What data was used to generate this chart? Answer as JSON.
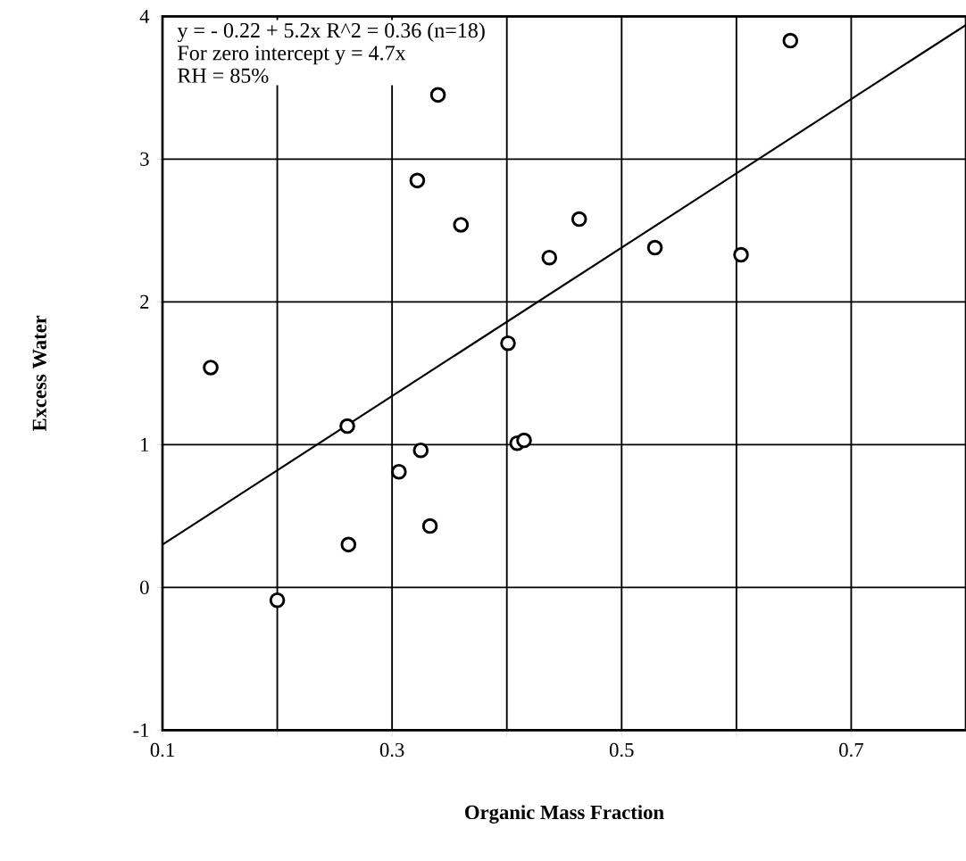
{
  "chart_data": {
    "type": "scatter",
    "xlabel": "Organic Mass Fraction",
    "ylabel": "Excess Water",
    "xlim": [
      0.1,
      0.8
    ],
    "ylim": [
      -1,
      4
    ],
    "xticks": [
      {
        "value": 0.1,
        "label": "0.1"
      },
      {
        "value": 0.2,
        "label": null
      },
      {
        "value": 0.3,
        "label": "0.3"
      },
      {
        "value": 0.4,
        "label": null
      },
      {
        "value": 0.5,
        "label": "0.5"
      },
      {
        "value": 0.6,
        "label": null
      },
      {
        "value": 0.7,
        "label": "0.7"
      }
    ],
    "yticks": [
      -1,
      0,
      1,
      2,
      3,
      4
    ],
    "grid": true,
    "annotations": [
      "y =  - 0.22 + 5.2x   R^2 = 0.36 (n=18)",
      "For zero intercept y = 4.7x",
      "RH = 85%"
    ],
    "series": [
      {
        "marker": "circle",
        "color": "#000000",
        "x": [
          0.142,
          0.261,
          0.262,
          0.2,
          0.306,
          0.325,
          0.333,
          0.322,
          0.34,
          0.36,
          0.401,
          0.409,
          0.415,
          0.437,
          0.463,
          0.529,
          0.604,
          0.647
        ],
        "values": [
          1.54,
          1.13,
          0.3,
          -0.09,
          0.81,
          0.96,
          0.43,
          2.85,
          3.45,
          2.54,
          1.71,
          1.01,
          1.03,
          2.31,
          2.58,
          2.38,
          2.33,
          3.83
        ]
      },
      {
        "type": "line",
        "marker": "none",
        "line_style": "solid",
        "color": "#000000",
        "x": [
          0.1,
          0.8
        ],
        "values": [
          0.3,
          3.94
        ]
      }
    ]
  }
}
